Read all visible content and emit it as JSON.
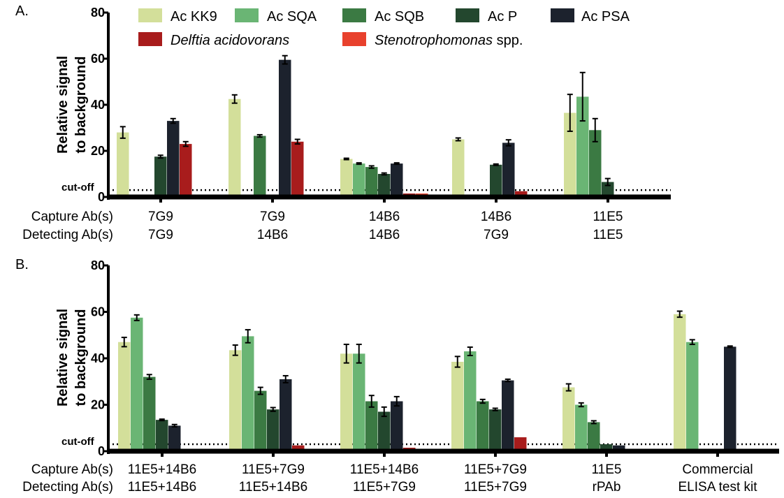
{
  "colors": {
    "kk9": "#d3df9a",
    "sqa": "#6ab574",
    "sqb": "#3b7a43",
    "p": "#23472e",
    "psa": "#1c222d",
    "delftia": "#a81c1c",
    "steno": "#e8412d",
    "axis": "#000000"
  },
  "legend": [
    {
      "key": "kk9",
      "label": "Ac KK9",
      "italic": ""
    },
    {
      "key": "sqa",
      "label": "Ac SQA",
      "italic": ""
    },
    {
      "key": "sqb",
      "label": "Ac SQB",
      "italic": ""
    },
    {
      "key": "p",
      "label": "Ac P",
      "italic": ""
    },
    {
      "key": "psa",
      "label": "Ac PSA",
      "italic": ""
    },
    {
      "key": "delftia",
      "label": "",
      "italic": "Delftia acidovorans"
    },
    {
      "key": "steno",
      "label": " spp.",
      "italic": "Stenotrophomonas"
    }
  ],
  "chart_data": [
    {
      "type": "bar",
      "panel_label": "A.",
      "ylabel_line1": "Relative signal",
      "ylabel_line2": "to background",
      "ylim": [
        0,
        80
      ],
      "yticks": [
        "0",
        "20",
        "40",
        "60",
        "80"
      ],
      "cutoff": 3,
      "cutoff_label": "cut-off",
      "row1_label": "Capture Ab(s)",
      "row2_label": "Detecting Ab(s)",
      "groups": [
        {
          "capture": "7G9",
          "detecting": "7G9",
          "values": [
            28,
            0,
            0,
            17.5,
            33,
            23,
            0
          ],
          "errors": [
            2.5,
            0,
            0,
            0.6,
            1,
            1,
            0
          ]
        },
        {
          "capture": "7G9",
          "detecting": "14B6",
          "values": [
            42.5,
            0,
            26.5,
            0,
            59.5,
            24,
            0
          ],
          "errors": [
            1.8,
            0,
            0.5,
            0,
            1.8,
            1,
            0
          ]
        },
        {
          "capture": "14B6",
          "detecting": "14B6",
          "values": [
            16.5,
            14.5,
            13,
            10,
            14.5,
            1.5,
            1.5
          ],
          "errors": [
            0.3,
            0.3,
            0.5,
            0.4,
            0.3,
            0,
            0
          ]
        },
        {
          "capture": "14B6",
          "detecting": "7G9",
          "values": [
            25,
            0.5,
            0.5,
            14,
            23.5,
            2.5,
            0.5
          ],
          "errors": [
            0.6,
            0,
            0,
            0.3,
            1.3,
            0,
            0
          ]
        },
        {
          "capture": "11E5",
          "detecting": "11E5",
          "values": [
            36.5,
            43.5,
            29,
            6.5,
            0.5,
            0.5,
            0.5
          ],
          "errors": [
            8,
            10.5,
            5,
            1.5,
            0,
            0,
            0
          ]
        }
      ]
    },
    {
      "type": "bar",
      "panel_label": "B.",
      "ylabel_line1": "Relative signal",
      "ylabel_line2": "to background",
      "ylim": [
        0,
        80
      ],
      "yticks": [
        "0",
        "20",
        "40",
        "60",
        "80"
      ],
      "cutoff": 3,
      "cutoff_label": "cut-off",
      "row1_label": "Capture Ab(s)",
      "row2_label": "Detecting Ab(s)",
      "groups": [
        {
          "capture": "11E5+14B6",
          "detecting": "11E5+14B6",
          "values": [
            47,
            57.5,
            32,
            13.5,
            11,
            1,
            1
          ],
          "errors": [
            2,
            1.2,
            1,
            0.3,
            0.5,
            0,
            0
          ]
        },
        {
          "capture": "11E5+7G9",
          "detecting": "11E5+14B6",
          "values": [
            43.5,
            49.5,
            26,
            18,
            31,
            2.5,
            0.5
          ],
          "errors": [
            2.2,
            2.8,
            1.5,
            0.8,
            1.5,
            0,
            0
          ]
        },
        {
          "capture": "11E5+14B6",
          "detecting": "11E5+7G9",
          "values": [
            42,
            42,
            21.5,
            17,
            21.5,
            1.5,
            0.5
          ],
          "errors": [
            4,
            4,
            2.5,
            2,
            2,
            0,
            0
          ]
        },
        {
          "capture": "11E5+7G9",
          "detecting": "11E5+7G9",
          "values": [
            38.5,
            43,
            21.5,
            18,
            30.5,
            6,
            0.5
          ],
          "errors": [
            2.3,
            1.8,
            0.8,
            0.5,
            0.5,
            0,
            0
          ]
        },
        {
          "capture": "11E5",
          "detecting": "rPAb",
          "values": [
            27.5,
            20,
            12.5,
            3,
            2.5,
            1,
            1
          ],
          "errors": [
            1.5,
            0.8,
            0.6,
            0,
            0,
            0,
            0
          ]
        },
        {
          "capture": "Commercial",
          "detecting": "ELISA test kit",
          "values": [
            59,
            47,
            0.5,
            0.5,
            45,
            0.5,
            0.5
          ],
          "errors": [
            1.3,
            1,
            0,
            0,
            0.3,
            0,
            0
          ]
        }
      ]
    }
  ]
}
